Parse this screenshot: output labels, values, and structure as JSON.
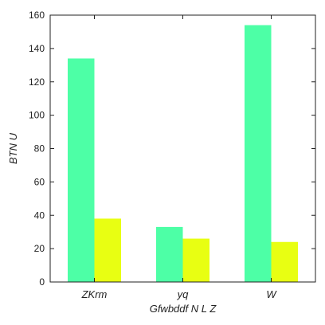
{
  "chart_data": {
    "type": "bar",
    "categories": [
      "ZKrm",
      "yq",
      "W"
    ],
    "series": [
      {
        "values": [
          134,
          33,
          154
        ],
        "color": "#4dffa6"
      },
      {
        "values": [
          38,
          26,
          24
        ],
        "color": "#e8ff12"
      }
    ],
    "xlabel": "Gfwbddf N L Z",
    "ylabel": "BTN U",
    "ylim": [
      0,
      160
    ],
    "yticks": [
      0,
      20,
      40,
      60,
      80,
      100,
      120,
      140,
      160
    ],
    "grid": false,
    "legend": false
  }
}
